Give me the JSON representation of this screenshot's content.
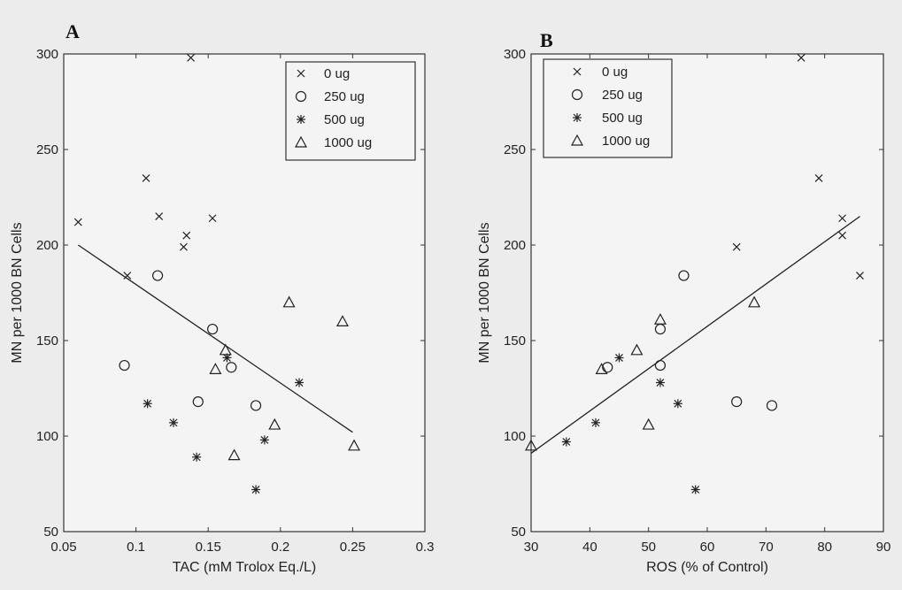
{
  "chart_data": [
    {
      "type": "scatter",
      "panel_label": "A",
      "xlabel": "TAC (mM Trolox Eq./L)",
      "ylabel": "MN per 1000 BN Cells",
      "xlim": [
        0.05,
        0.3
      ],
      "ylim": [
        50,
        300
      ],
      "xticks": [
        "0.05",
        "0.1",
        "0.15",
        "0.2",
        "0.25",
        "0.3"
      ],
      "yticks": [
        "50",
        "100",
        "150",
        "200",
        "250",
        "300"
      ],
      "legend_position": "top-right",
      "series": [
        {
          "name": "0 ug",
          "marker": "x",
          "points": [
            [
              0.06,
              212
            ],
            [
              0.094,
              184
            ],
            [
              0.107,
              235
            ],
            [
              0.116,
              215
            ],
            [
              0.133,
              199
            ],
            [
              0.135,
              205
            ],
            [
              0.138,
              298
            ],
            [
              0.153,
              214
            ]
          ]
        },
        {
          "name": "250 ug",
          "marker": "circle",
          "points": [
            [
              0.092,
              137
            ],
            [
              0.115,
              184
            ],
            [
              0.143,
              118
            ],
            [
              0.153,
              156
            ],
            [
              0.166,
              136
            ],
            [
              0.183,
              116
            ]
          ]
        },
        {
          "name": "500 ug",
          "marker": "star",
          "points": [
            [
              0.108,
              117
            ],
            [
              0.126,
              107
            ],
            [
              0.142,
              89
            ],
            [
              0.163,
              141
            ],
            [
              0.183,
              72
            ],
            [
              0.189,
              98
            ],
            [
              0.213,
              128
            ]
          ]
        },
        {
          "name": "1000 ug",
          "marker": "triangle",
          "points": [
            [
              0.155,
              135
            ],
            [
              0.162,
              145
            ],
            [
              0.168,
              90
            ],
            [
              0.196,
              106
            ],
            [
              0.206,
              170
            ],
            [
              0.243,
              160
            ],
            [
              0.251,
              95
            ]
          ]
        }
      ],
      "fit_line": [
        [
          0.06,
          200
        ],
        [
          0.25,
          102
        ]
      ]
    },
    {
      "type": "scatter",
      "panel_label": "B",
      "xlabel": "ROS (% of Control)",
      "ylabel": "MN per 1000 BN Cells",
      "xlim": [
        30,
        90
      ],
      "ylim": [
        50,
        300
      ],
      "xticks": [
        "30",
        "40",
        "50",
        "60",
        "70",
        "80",
        "90"
      ],
      "yticks": [
        "50",
        "100",
        "150",
        "200",
        "250",
        "300"
      ],
      "legend_position": "top-left",
      "series": [
        {
          "name": "0 ug",
          "marker": "x",
          "points": [
            [
              65,
              199
            ],
            [
              76,
              298
            ],
            [
              79,
              235
            ],
            [
              83,
              214
            ],
            [
              83,
              205
            ],
            [
              86,
              184
            ]
          ]
        },
        {
          "name": "250 ug",
          "marker": "circle",
          "points": [
            [
              43,
              136
            ],
            [
              52,
              137
            ],
            [
              52,
              156
            ],
            [
              56,
              184
            ],
            [
              65,
              118
            ],
            [
              71,
              116
            ]
          ]
        },
        {
          "name": "500 ug",
          "marker": "star",
          "points": [
            [
              36,
              97
            ],
            [
              41,
              107
            ],
            [
              45,
              141
            ],
            [
              52,
              128
            ],
            [
              55,
              117
            ],
            [
              58,
              72
            ]
          ]
        },
        {
          "name": "1000 ug",
          "marker": "triangle",
          "points": [
            [
              30,
              95
            ],
            [
              42,
              135
            ],
            [
              48,
              145
            ],
            [
              50,
              106
            ],
            [
              52,
              161
            ],
            [
              68,
              170
            ]
          ]
        }
      ],
      "fit_line": [
        [
          30,
          91
        ],
        [
          86,
          215
        ]
      ]
    }
  ]
}
